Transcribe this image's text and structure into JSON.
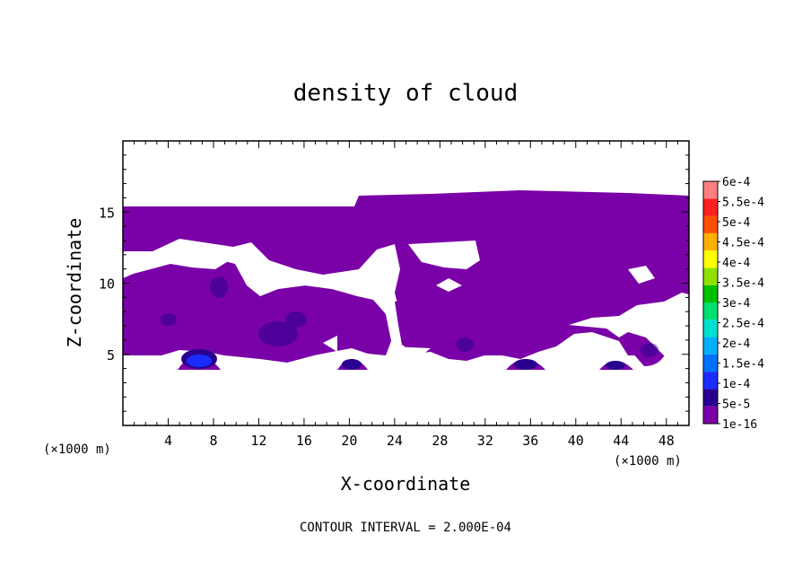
{
  "chart_data": {
    "type": "heatmap",
    "title": "density of cloud",
    "xlabel": "X-coordinate",
    "ylabel": "Z-coordinate",
    "x_unit_label": "(×1000 m)",
    "z_unit_label": "(×1000 m)",
    "footer": "CONTOUR INTERVAL = 2.000E-04",
    "xlim": [
      0,
      50
    ],
    "ylim": [
      0,
      20
    ],
    "xticks": [
      4,
      8,
      12,
      16,
      20,
      24,
      28,
      32,
      36,
      40,
      44,
      48
    ],
    "xtick_labels": [
      "4",
      "8",
      "12",
      "16",
      "20",
      "24",
      "28",
      "32",
      "36",
      "40",
      "44",
      "48"
    ],
    "yticks": [
      5,
      10,
      15
    ],
    "ytick_labels": [
      "5",
      "10",
      "15"
    ],
    "colorbar": {
      "levels": [
        "1e-16",
        "5e-5",
        "1e-4",
        "1.5e-4",
        "2e-4",
        "2.5e-4",
        "3e-4",
        "3.5e-4",
        "4e-4",
        "4.5e-4",
        "5e-4",
        "5.5e-4",
        "6e-4"
      ],
      "colors": [
        "#7a00a8",
        "#2a0090",
        "#1a2cff",
        "#0070ff",
        "#00b0ff",
        "#00e0d0",
        "#00e070",
        "#00c000",
        "#90e000",
        "#ffff00",
        "#ffb000",
        "#ff5000",
        "#ff2020",
        "#ff8080"
      ]
    },
    "cloud_regions": [
      {
        "x": [
          0,
          50
        ],
        "z": [
          15,
          15.3
        ],
        "level": "1e-16"
      },
      {
        "x": [
          0,
          50
        ],
        "z": [
          10.5,
          15
        ],
        "level": "1e-16"
      },
      {
        "x": [
          0,
          50
        ],
        "z": [
          5,
          10.5
        ],
        "level": "1e-16"
      },
      {
        "x": [
          5,
          8.5
        ],
        "z": [
          4,
          5
        ],
        "level": "1e-16"
      },
      {
        "x": [
          19,
          21.5
        ],
        "z": [
          4,
          5
        ],
        "level": "1e-16"
      },
      {
        "x": [
          34,
          37
        ],
        "z": [
          4,
          5
        ],
        "level": "1e-16"
      },
      {
        "x": [
          42,
          45
        ],
        "z": [
          4,
          5
        ],
        "level": "1e-16"
      }
    ],
    "maxima": [
      {
        "x": 6.8,
        "z": 4.8,
        "level": "1e-4"
      },
      {
        "x": 14,
        "z": 7.5,
        "level": "5e-5"
      },
      {
        "x": 20.5,
        "z": 4.5,
        "level": "5e-5"
      },
      {
        "x": 36,
        "z": 4.5,
        "level": "5e-5"
      },
      {
        "x": 43.5,
        "z": 4.4,
        "level": "5e-5"
      },
      {
        "x": 46.5,
        "z": 5.2,
        "level": "5e-5"
      }
    ]
  }
}
